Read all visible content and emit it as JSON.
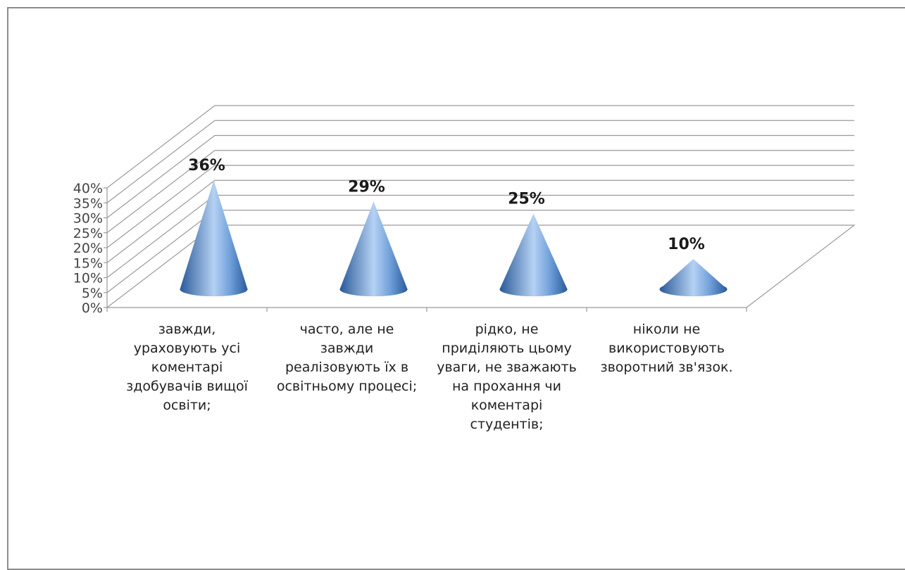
{
  "chart_data": {
    "type": "bar",
    "subtype": "3d-cone",
    "categories": [
      "завжди, ураховують усі коментарі здобувачів вищої освіти;",
      "часто, але не завжди реалізовують їх в освітньому процесі;",
      "рідко, не приділяють цьому уваги, не зважають на прохання чи коментарі студентів;",
      "ніколи не використовують зворотний зв'язок."
    ],
    "category_lines": [
      [
        "завжди,",
        "ураховують усі",
        "коментарі",
        "здобувачів вищої",
        "освіти;"
      ],
      [
        "часто, але не",
        "завжди",
        "реалізовують їх в",
        "освітньому процесі;"
      ],
      [
        "рідко, не",
        "приділяють цьому",
        "уваги, не зважають",
        "на прохання чи",
        "коментарі",
        "студентів;"
      ],
      [
        "ніколи не",
        "використовують",
        "зворотний зв'язок."
      ]
    ],
    "values": [
      36,
      29,
      25,
      10
    ],
    "data_labels": [
      "36%",
      "29%",
      "25%",
      "10%"
    ],
    "y_ticks": [
      "0%",
      "5%",
      "10%",
      "15%",
      "20%",
      "25%",
      "30%",
      "35%",
      "40%"
    ],
    "ylim": [
      0,
      40
    ],
    "y_unit": "%",
    "title": "",
    "xlabel": "",
    "ylabel": "",
    "grid": true,
    "legend": "none",
    "colors": {
      "cone_dark": "#2a5a9a",
      "cone_mid": "#6f9fd9",
      "cone_light": "#b5d1f3",
      "grid": "#9a9a9a",
      "frame": "#8c8c8c"
    }
  }
}
